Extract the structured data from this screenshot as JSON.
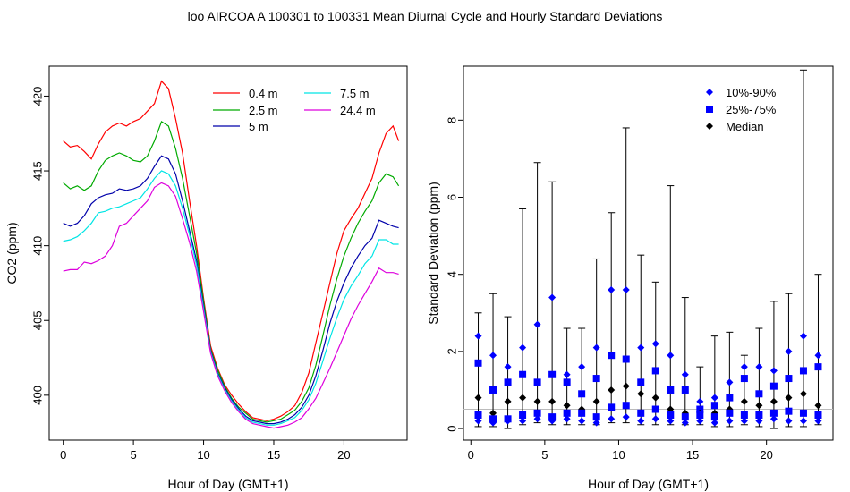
{
  "page_title": "loo   AIRCOA A   100301 to 100331   Mean Diurnal Cycle and Hourly Standard Deviations",
  "chart_data": [
    {
      "type": "line",
      "title": "",
      "xlabel": "Hour of Day (GMT+1)",
      "ylabel": "CO2 (ppm)",
      "xlim": [
        -1,
        24.5
      ],
      "ylim": [
        397,
        422
      ],
      "xticks": [
        0,
        5,
        10,
        15,
        20
      ],
      "yticks": [
        400,
        405,
        410,
        415,
        420
      ],
      "grid": false,
      "legend": "top-right",
      "series": [
        {
          "name": "0.4 m",
          "color": "#ff0000",
          "x": [
            0,
            0.5,
            1,
            1.5,
            2,
            2.5,
            3,
            3.5,
            4,
            4.5,
            5,
            5.5,
            6,
            6.5,
            7,
            7.5,
            8,
            8.5,
            9,
            9.5,
            10,
            10.5,
            11,
            11.5,
            12,
            12.5,
            13,
            13.5,
            14,
            14.5,
            15,
            15.5,
            16,
            16.5,
            17,
            17.5,
            18,
            18.5,
            19,
            19.5,
            20,
            20.5,
            21,
            21.5,
            22,
            22.5,
            23,
            23.5,
            23.9
          ],
          "y": [
            417.0,
            416.6,
            416.7,
            416.3,
            415.8,
            416.8,
            417.6,
            418.0,
            418.2,
            418.0,
            418.3,
            418.5,
            419.0,
            419.5,
            421.0,
            420.5,
            418.5,
            416.2,
            413.0,
            410.0,
            406.5,
            403.3,
            401.8,
            400.7,
            400.0,
            399.4,
            398.9,
            398.5,
            398.4,
            398.3,
            398.4,
            398.6,
            398.9,
            399.3,
            400.2,
            401.5,
            403.5,
            405.5,
            407.5,
            409.5,
            411.0,
            411.8,
            412.5,
            413.5,
            414.5,
            416.2,
            417.5,
            418.0,
            417.0
          ]
        },
        {
          "name": "2.5 m",
          "color": "#00aa00",
          "x": [
            0,
            0.5,
            1,
            1.5,
            2,
            2.5,
            3,
            3.5,
            4,
            4.5,
            5,
            5.5,
            6,
            6.5,
            7,
            7.5,
            8,
            8.5,
            9,
            9.5,
            10,
            10.5,
            11,
            11.5,
            12,
            12.5,
            13,
            13.5,
            14,
            14.5,
            15,
            15.5,
            16,
            16.5,
            17,
            17.5,
            18,
            18.5,
            19,
            19.5,
            20,
            20.5,
            21,
            21.5,
            22,
            22.5,
            23,
            23.5,
            23.9
          ],
          "y": [
            414.2,
            413.8,
            414.0,
            413.7,
            414.0,
            415.0,
            415.7,
            416.0,
            416.2,
            416.0,
            415.7,
            415.6,
            416.0,
            417.0,
            418.3,
            418.0,
            416.5,
            414.5,
            412.0,
            409.5,
            406.3,
            403.1,
            401.7,
            400.6,
            399.8,
            399.2,
            398.8,
            398.4,
            398.3,
            398.2,
            398.3,
            398.4,
            398.7,
            399.0,
            399.6,
            400.5,
            402.0,
            404.0,
            406.0,
            407.8,
            409.3,
            410.5,
            411.5,
            412.3,
            413.0,
            414.2,
            414.8,
            414.6,
            414.0
          ]
        },
        {
          "name": "5 m",
          "color": "#0000aa",
          "x": [
            0,
            0.5,
            1,
            1.5,
            2,
            2.5,
            3,
            3.5,
            4,
            4.5,
            5,
            5.5,
            6,
            6.5,
            7,
            7.5,
            8,
            8.5,
            9,
            9.5,
            10,
            10.5,
            11,
            11.5,
            12,
            12.5,
            13,
            13.5,
            14,
            14.5,
            15,
            15.5,
            16,
            16.5,
            17,
            17.5,
            18,
            18.5,
            19,
            19.5,
            20,
            20.5,
            21,
            21.5,
            22,
            22.5,
            23,
            23.5,
            23.9
          ],
          "y": [
            411.5,
            411.3,
            411.5,
            412.0,
            412.8,
            413.2,
            413.4,
            413.5,
            413.8,
            413.7,
            413.8,
            414.0,
            414.5,
            415.3,
            416.0,
            415.8,
            414.8,
            413.0,
            411.0,
            409.0,
            406.0,
            403.0,
            401.5,
            400.5,
            399.7,
            399.1,
            398.6,
            398.3,
            398.2,
            398.1,
            398.1,
            398.2,
            398.4,
            398.7,
            399.2,
            400.0,
            401.3,
            403.0,
            404.8,
            406.3,
            407.5,
            408.5,
            409.3,
            410.0,
            410.5,
            411.7,
            411.5,
            411.3,
            411.2
          ]
        },
        {
          "name": "7.5 m",
          "color": "#00e5e5",
          "x": [
            0,
            0.5,
            1,
            1.5,
            2,
            2.5,
            3,
            3.5,
            4,
            4.5,
            5,
            5.5,
            6,
            6.5,
            7,
            7.5,
            8,
            8.5,
            9,
            9.5,
            10,
            10.5,
            11,
            11.5,
            12,
            12.5,
            13,
            13.5,
            14,
            14.5,
            15,
            15.5,
            16,
            16.5,
            17,
            17.5,
            18,
            18.5,
            19,
            19.5,
            20,
            20.5,
            21,
            21.5,
            22,
            22.5,
            23,
            23.5,
            23.9
          ],
          "y": [
            410.3,
            410.4,
            410.6,
            411.0,
            411.5,
            412.2,
            412.3,
            412.5,
            412.6,
            412.8,
            413.0,
            413.2,
            413.8,
            414.5,
            415.0,
            414.8,
            414.0,
            412.5,
            410.7,
            408.7,
            405.8,
            402.9,
            401.4,
            400.4,
            399.6,
            399.0,
            398.5,
            398.2,
            398.1,
            398.0,
            398.0,
            398.1,
            398.3,
            398.5,
            399.0,
            399.7,
            400.8,
            402.3,
            403.8,
            405.2,
            406.4,
            407.3,
            408.0,
            408.8,
            409.3,
            410.4,
            410.4,
            410.1,
            410.1
          ]
        },
        {
          "name": "24.4 m",
          "color": "#dd00dd",
          "x": [
            0,
            0.5,
            1,
            1.5,
            2,
            2.5,
            3,
            3.5,
            4,
            4.5,
            5,
            5.5,
            6,
            6.5,
            7,
            7.5,
            8,
            8.5,
            9,
            9.5,
            10,
            10.5,
            11,
            11.5,
            12,
            12.5,
            13,
            13.5,
            14,
            14.5,
            15,
            15.5,
            16,
            16.5,
            17,
            17.5,
            18,
            18.5,
            19,
            19.5,
            20,
            20.5,
            21,
            21.5,
            22,
            22.5,
            23,
            23.5,
            23.9
          ],
          "y": [
            408.3,
            408.4,
            408.4,
            408.9,
            408.8,
            409.0,
            409.3,
            410.0,
            411.3,
            411.5,
            412.0,
            412.5,
            413.0,
            413.9,
            414.2,
            414.0,
            413.3,
            411.8,
            410.2,
            408.3,
            405.6,
            402.8,
            401.3,
            400.3,
            399.5,
            398.9,
            398.4,
            398.1,
            398.0,
            397.9,
            397.8,
            397.9,
            398.0,
            398.2,
            398.5,
            399.1,
            399.8,
            400.8,
            401.8,
            402.9,
            404.0,
            405.1,
            406.0,
            406.8,
            407.6,
            408.5,
            408.2,
            408.2,
            408.1
          ]
        }
      ]
    },
    {
      "type": "scatter",
      "title": "",
      "xlabel": "Hour of Day (GMT+1)",
      "ylabel": "Standard Deviation (ppm)",
      "xlim": [
        -0.5,
        24.5
      ],
      "ylim": [
        -0.3,
        9.4
      ],
      "xticks": [
        0,
        5,
        10,
        15,
        20
      ],
      "yticks": [
        0,
        2,
        4,
        6,
        8
      ],
      "grid": false,
      "legend": "top-right",
      "reference_line": 0.5,
      "legend_entries": [
        {
          "label": "10%-90%",
          "marker": "diamond",
          "color": "#0000ff"
        },
        {
          "label": "25%-75%",
          "marker": "square",
          "color": "#0000ff"
        },
        {
          "label": "Median",
          "marker": "diamond",
          "color": "#000000"
        }
      ],
      "hours": [
        0.5,
        1.5,
        2.5,
        3.5,
        4.5,
        5.5,
        6.5,
        7.5,
        8.5,
        9.5,
        10.5,
        11.5,
        12.5,
        13.5,
        14.5,
        15.5,
        16.5,
        17.5,
        18.5,
        19.5,
        20.5,
        21.5,
        22.5,
        23.5
      ],
      "error_top": [
        3.0,
        3.5,
        2.9,
        5.7,
        6.9,
        6.4,
        2.6,
        2.6,
        4.4,
        5.6,
        7.8,
        4.5,
        3.8,
        6.3,
        3.4,
        1.6,
        2.4,
        2.5,
        1.9,
        2.6,
        3.3,
        3.5,
        9.3,
        4.0
      ],
      "error_bottom": [
        0.05,
        0.05,
        0.0,
        0.1,
        0.15,
        0.1,
        0.1,
        0.1,
        0.1,
        0.15,
        0.15,
        0.1,
        0.1,
        0.1,
        0.1,
        0.1,
        0.05,
        0.05,
        0.1,
        0.05,
        0.0,
        0.05,
        0.05,
        0.1
      ],
      "p90": [
        2.4,
        1.9,
        1.6,
        2.1,
        2.7,
        3.4,
        1.4,
        1.6,
        2.1,
        3.6,
        3.6,
        2.1,
        2.2,
        1.9,
        1.4,
        0.7,
        0.8,
        1.2,
        1.6,
        1.6,
        1.5,
        2.0,
        2.4,
        1.9
      ],
      "p75": [
        1.7,
        1.0,
        1.2,
        1.4,
        1.2,
        1.4,
        1.2,
        0.9,
        1.3,
        1.9,
        1.8,
        1.2,
        1.5,
        1.0,
        1.0,
        0.5,
        0.6,
        0.8,
        1.3,
        0.9,
        1.1,
        1.3,
        1.5,
        1.6
      ],
      "median": [
        0.8,
        0.4,
        0.7,
        0.8,
        0.7,
        0.7,
        0.6,
        0.5,
        0.7,
        1.0,
        1.1,
        0.9,
        0.8,
        0.5,
        0.4,
        0.4,
        0.4,
        0.5,
        0.7,
        0.6,
        0.7,
        0.8,
        0.9,
        0.6
      ],
      "p25": [
        0.35,
        0.25,
        0.25,
        0.35,
        0.4,
        0.3,
        0.4,
        0.4,
        0.3,
        0.55,
        0.6,
        0.4,
        0.5,
        0.35,
        0.3,
        0.35,
        0.3,
        0.4,
        0.35,
        0.35,
        0.4,
        0.45,
        0.4,
        0.35
      ],
      "p10": [
        0.2,
        0.15,
        0.2,
        0.2,
        0.25,
        0.2,
        0.25,
        0.2,
        0.15,
        0.25,
        0.3,
        0.2,
        0.25,
        0.2,
        0.15,
        0.2,
        0.15,
        0.2,
        0.2,
        0.2,
        0.25,
        0.2,
        0.2,
        0.2
      ]
    }
  ]
}
